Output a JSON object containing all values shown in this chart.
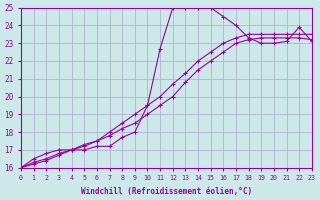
{
  "xlabel": "Windchill (Refroidissement éolien,°C)",
  "background_color": "#cce8e8",
  "grid_color": "#aaaacc",
  "line_color": "#990099",
  "xlim": [
    0,
    23
  ],
  "ylim": [
    16,
    25
  ],
  "xticks": [
    0,
    1,
    2,
    3,
    4,
    5,
    6,
    7,
    8,
    9,
    10,
    11,
    12,
    13,
    14,
    15,
    16,
    17,
    18,
    19,
    20,
    21,
    22,
    23
  ],
  "yticks": [
    16,
    17,
    18,
    19,
    20,
    21,
    22,
    23,
    24,
    25
  ],
  "line1_x": [
    0,
    1,
    2,
    3,
    4,
    5,
    6,
    7,
    8,
    9,
    10,
    11,
    12,
    13,
    14,
    15,
    16,
    17,
    18,
    19,
    20,
    21,
    22,
    23
  ],
  "line1_y": [
    16.0,
    16.5,
    16.8,
    17.0,
    17.0,
    17.0,
    17.2,
    17.2,
    17.7,
    18.0,
    19.5,
    22.7,
    25.0,
    25.0,
    25.0,
    25.0,
    24.5,
    24.0,
    23.3,
    23.0,
    23.0,
    23.1,
    23.9,
    23.1
  ],
  "line2_x": [
    0,
    1,
    2,
    3,
    4,
    5,
    6,
    7,
    8,
    9,
    10,
    11,
    12,
    13,
    14,
    15,
    16,
    17,
    18,
    19,
    20,
    21,
    22,
    23
  ],
  "line2_y": [
    16.0,
    16.3,
    16.5,
    16.8,
    17.0,
    17.3,
    17.5,
    18.0,
    18.5,
    19.0,
    19.5,
    20.0,
    20.7,
    21.3,
    22.0,
    22.5,
    23.0,
    23.3,
    23.5,
    23.5,
    23.5,
    23.5,
    23.5,
    23.5
  ],
  "line3_x": [
    0,
    1,
    2,
    3,
    4,
    5,
    6,
    7,
    8,
    9,
    10,
    11,
    12,
    13,
    14,
    15,
    16,
    17,
    18,
    19,
    20,
    21,
    22,
    23
  ],
  "line3_y": [
    16.0,
    16.2,
    16.4,
    16.7,
    17.0,
    17.2,
    17.5,
    17.8,
    18.2,
    18.5,
    19.0,
    19.5,
    20.0,
    20.8,
    21.5,
    22.0,
    22.5,
    23.0,
    23.2,
    23.3,
    23.3,
    23.3,
    23.3,
    23.2
  ]
}
